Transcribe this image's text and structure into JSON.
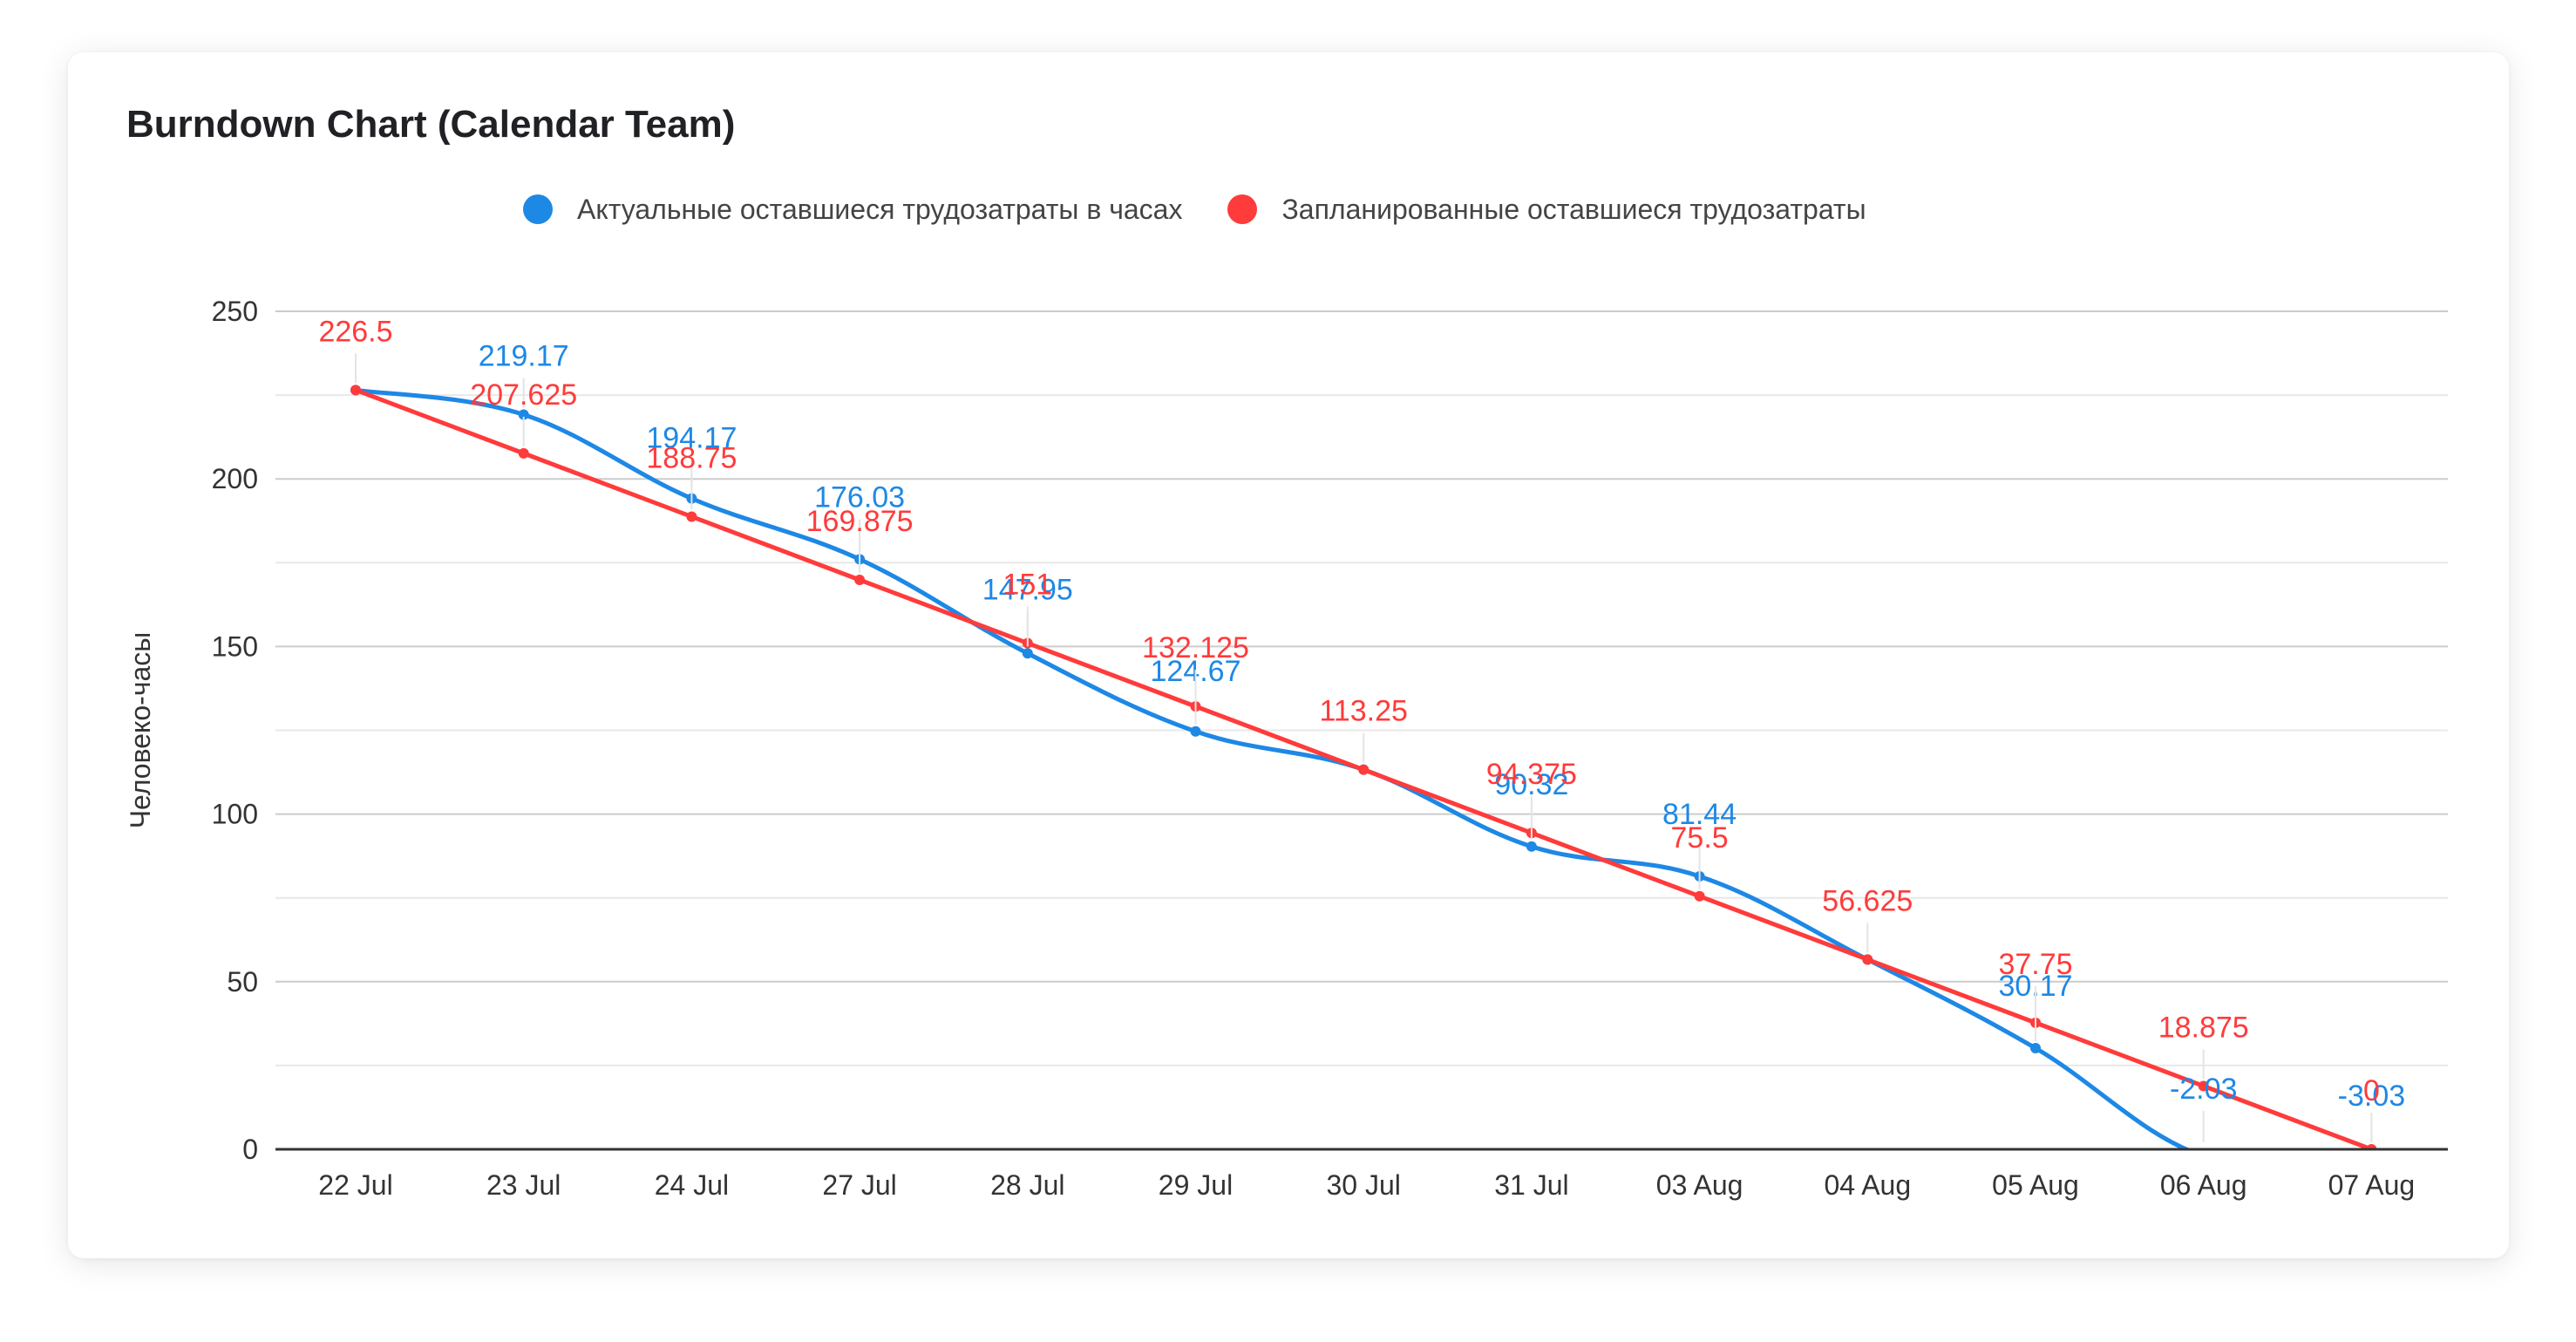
{
  "colors": {
    "actual": "#1e88e5",
    "planned": "#ff3b3b",
    "grid_major": "#cccccc",
    "grid_minor": "#e8e8e8",
    "axis": "#333333"
  },
  "chart_data": {
    "type": "line",
    "title": "Burndown Chart (Calendar Team)",
    "ylabel": "Человеко-часы",
    "xlabel": "",
    "ylim": [
      0,
      250
    ],
    "yticks": [
      0,
      50,
      100,
      150,
      200,
      250
    ],
    "grid": true,
    "legend_position": "top",
    "categories": [
      "22 Jul",
      "23 Jul",
      "24 Jul",
      "27 Jul",
      "28 Jul",
      "29 Jul",
      "30 Jul",
      "31 Jul",
      "03 Aug",
      "04 Aug",
      "05 Aug",
      "06 Aug",
      "07 Aug"
    ],
    "series": [
      {
        "name": "Актуальные оставшиеся трудозатраты в часах",
        "color_key": "actual",
        "values": [
          226.5,
          219.17,
          194.17,
          176.03,
          147.95,
          124.67,
          113.25,
          90.32,
          81.44,
          56.625,
          30.17,
          -2.03,
          -3.03
        ],
        "labels": [
          "",
          "219.17",
          "194.17",
          "176.03",
          "147.95",
          "124.67",
          "",
          "90.32",
          "81.44",
          "",
          "30.17",
          "-2.03",
          "-3.03"
        ]
      },
      {
        "name": "Запланированные оставшиеся трудозатраты",
        "color_key": "planned",
        "values": [
          226.5,
          207.625,
          188.75,
          169.875,
          151,
          132.125,
          113.25,
          94.375,
          75.5,
          56.625,
          37.75,
          18.875,
          0
        ],
        "labels": [
          "226.5",
          "207.625",
          "188.75",
          "169.875",
          "151",
          "132.125",
          "113.25",
          "94.375",
          "75.5",
          "56.625",
          "37.75",
          "18.875",
          "0"
        ]
      }
    ]
  }
}
